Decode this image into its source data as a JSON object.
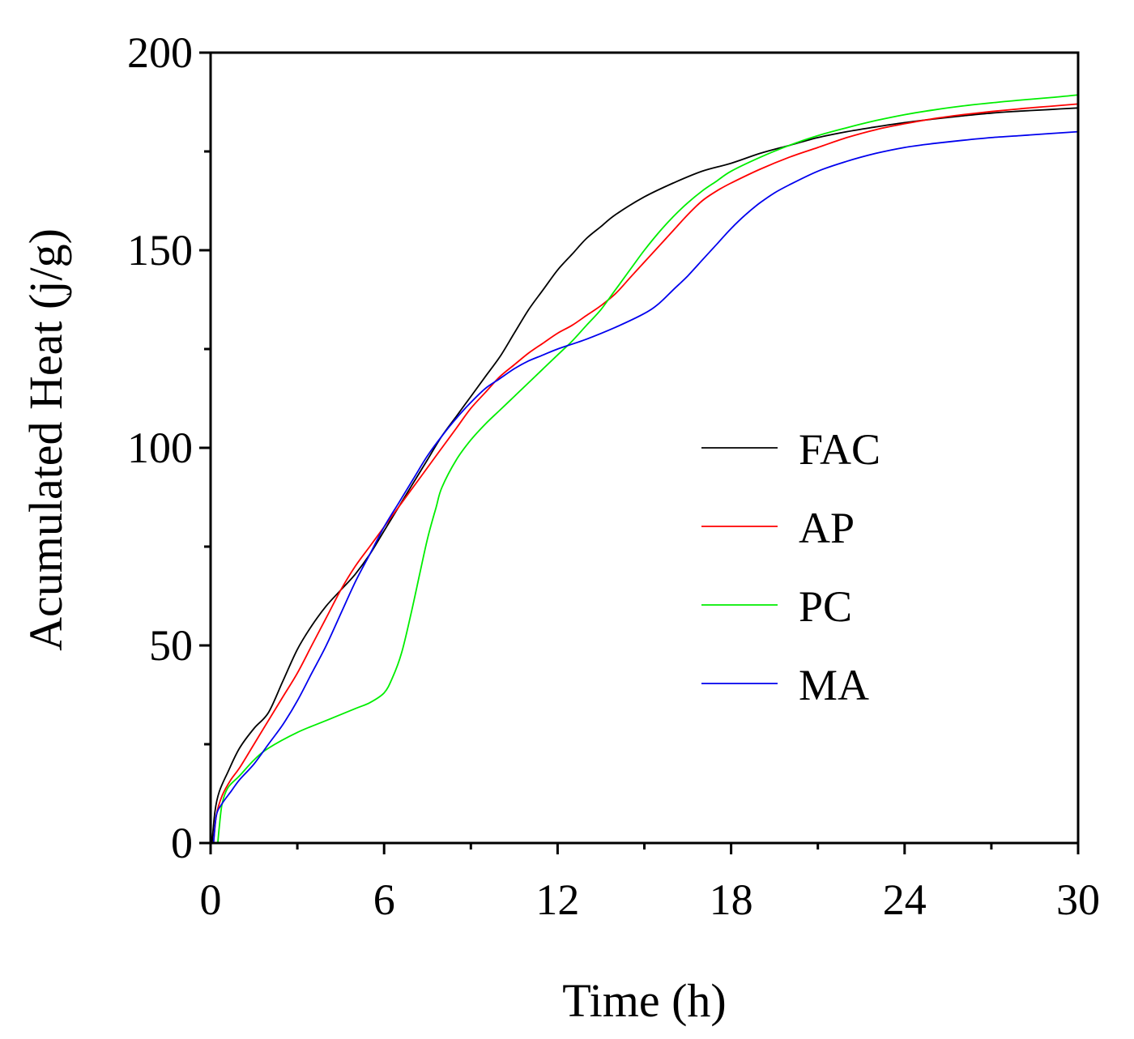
{
  "chart_data": {
    "type": "line",
    "title": "",
    "xlabel": "Time (h)",
    "ylabel": "Acumulated Heat (j/g)",
    "xlim": [
      0,
      30
    ],
    "ylim": [
      0,
      200
    ],
    "xticks": [
      0,
      6,
      12,
      18,
      24,
      30
    ],
    "xtick_labels": [
      "0",
      "6",
      "12",
      "18",
      "24",
      "30"
    ],
    "yticks": [
      0,
      50,
      100,
      150,
      200
    ],
    "ytick_labels": [
      "0",
      "50",
      "100",
      "150",
      "200"
    ],
    "x_minor_ticks": [
      3,
      9,
      15,
      21,
      27
    ],
    "y_minor_ticks": [
      25,
      75,
      125,
      175
    ],
    "legend_position": "center-right",
    "grid": false,
    "series": [
      {
        "name": "FAC",
        "color": "#000000",
        "points": [
          [
            0.05,
            0
          ],
          [
            0.15,
            8
          ],
          [
            0.3,
            13
          ],
          [
            0.6,
            18
          ],
          [
            1,
            24
          ],
          [
            1.5,
            29
          ],
          [
            2,
            33
          ],
          [
            2.5,
            41
          ],
          [
            3,
            49
          ],
          [
            3.5,
            55
          ],
          [
            4,
            60
          ],
          [
            4.5,
            64
          ],
          [
            5,
            68
          ],
          [
            5.5,
            73
          ],
          [
            6,
            79
          ],
          [
            6.5,
            85
          ],
          [
            7,
            91
          ],
          [
            7.5,
            97
          ],
          [
            8,
            103
          ],
          [
            8.5,
            108
          ],
          [
            9,
            113
          ],
          [
            9.5,
            118
          ],
          [
            10,
            123
          ],
          [
            10.5,
            129
          ],
          [
            11,
            135
          ],
          [
            11.5,
            140
          ],
          [
            12,
            145
          ],
          [
            12.5,
            149
          ],
          [
            13,
            153
          ],
          [
            13.5,
            156
          ],
          [
            14,
            159
          ],
          [
            15,
            163.5
          ],
          [
            16,
            167
          ],
          [
            17,
            170
          ],
          [
            18,
            172
          ],
          [
            19,
            174.5
          ],
          [
            20,
            176.5
          ],
          [
            21,
            178.5
          ],
          [
            22,
            180
          ],
          [
            23,
            181.2
          ],
          [
            24,
            182.3
          ],
          [
            25,
            183.2
          ],
          [
            26,
            184
          ],
          [
            27,
            184.7
          ],
          [
            28,
            185.2
          ],
          [
            29,
            185.6
          ],
          [
            30,
            186
          ]
        ]
      },
      {
        "name": "AP",
        "color": "#ff0000",
        "points": [
          [
            0.1,
            0
          ],
          [
            0.2,
            7
          ],
          [
            0.4,
            12
          ],
          [
            0.7,
            16
          ],
          [
            1,
            19
          ],
          [
            1.5,
            25
          ],
          [
            2,
            31
          ],
          [
            2.5,
            37
          ],
          [
            3,
            43
          ],
          [
            3.5,
            50
          ],
          [
            4,
            57
          ],
          [
            4.5,
            64
          ],
          [
            5,
            70
          ],
          [
            5.5,
            75
          ],
          [
            6,
            80
          ],
          [
            6.5,
            85
          ],
          [
            7,
            90
          ],
          [
            7.5,
            95
          ],
          [
            8,
            100
          ],
          [
            8.5,
            105
          ],
          [
            9,
            110
          ],
          [
            9.5,
            114
          ],
          [
            10,
            118
          ],
          [
            10.5,
            121
          ],
          [
            11,
            124
          ],
          [
            11.5,
            126.5
          ],
          [
            12,
            129
          ],
          [
            12.5,
            131
          ],
          [
            13,
            133.5
          ],
          [
            13.5,
            136
          ],
          [
            14,
            139
          ],
          [
            14.5,
            143
          ],
          [
            15,
            147
          ],
          [
            15.5,
            151
          ],
          [
            16,
            155
          ],
          [
            16.5,
            159
          ],
          [
            17,
            162.5
          ],
          [
            17.5,
            165
          ],
          [
            18,
            167
          ],
          [
            19,
            170.5
          ],
          [
            20,
            173.5
          ],
          [
            21,
            176
          ],
          [
            22,
            178.5
          ],
          [
            23,
            180.5
          ],
          [
            24,
            182
          ],
          [
            25,
            183.3
          ],
          [
            26,
            184.3
          ],
          [
            27,
            185.1
          ],
          [
            28,
            185.8
          ],
          [
            29,
            186.4
          ],
          [
            30,
            187
          ]
        ]
      },
      {
        "name": "PC",
        "color": "#00ee00",
        "points": [
          [
            0.25,
            0
          ],
          [
            0.3,
            4
          ],
          [
            0.4,
            10
          ],
          [
            0.6,
            14
          ],
          [
            1,
            17
          ],
          [
            1.5,
            21
          ],
          [
            2,
            24
          ],
          [
            3,
            28
          ],
          [
            4,
            31
          ],
          [
            5,
            34
          ],
          [
            5.5,
            35.5
          ],
          [
            6,
            38
          ],
          [
            6.3,
            42
          ],
          [
            6.6,
            48
          ],
          [
            6.9,
            57
          ],
          [
            7.2,
            67
          ],
          [
            7.5,
            77
          ],
          [
            7.8,
            85
          ],
          [
            8,
            90
          ],
          [
            8.5,
            97
          ],
          [
            9,
            102
          ],
          [
            9.5,
            106
          ],
          [
            10,
            109.5
          ],
          [
            10.5,
            113
          ],
          [
            11,
            116.5
          ],
          [
            11.5,
            120
          ],
          [
            12,
            123.5
          ],
          [
            12.5,
            127
          ],
          [
            13,
            131
          ],
          [
            13.5,
            135
          ],
          [
            14,
            140
          ],
          [
            14.5,
            145
          ],
          [
            15,
            150
          ],
          [
            15.5,
            154.5
          ],
          [
            16,
            158.5
          ],
          [
            16.5,
            162
          ],
          [
            17,
            165
          ],
          [
            17.5,
            167.5
          ],
          [
            18,
            170
          ],
          [
            19,
            173.5
          ],
          [
            20,
            176.5
          ],
          [
            21,
            179
          ],
          [
            22,
            181
          ],
          [
            23,
            182.8
          ],
          [
            24,
            184.3
          ],
          [
            25,
            185.5
          ],
          [
            26,
            186.5
          ],
          [
            27,
            187.3
          ],
          [
            28,
            188
          ],
          [
            29,
            188.6
          ],
          [
            30,
            189.3
          ]
        ]
      },
      {
        "name": "MA",
        "color": "#0000ee",
        "points": [
          [
            0.1,
            0
          ],
          [
            0.2,
            7
          ],
          [
            0.4,
            10
          ],
          [
            0.7,
            13
          ],
          [
            1,
            16
          ],
          [
            1.5,
            20
          ],
          [
            2,
            25
          ],
          [
            2.5,
            30
          ],
          [
            3,
            36
          ],
          [
            3.5,
            43
          ],
          [
            4,
            50
          ],
          [
            4.5,
            58
          ],
          [
            5,
            66
          ],
          [
            5.5,
            73
          ],
          [
            6,
            80
          ],
          [
            6.5,
            86
          ],
          [
            7,
            92
          ],
          [
            7.5,
            98
          ],
          [
            8,
            103
          ],
          [
            8.5,
            107.5
          ],
          [
            9,
            111.5
          ],
          [
            9.5,
            115
          ],
          [
            10,
            117.5
          ],
          [
            10.5,
            120
          ],
          [
            11,
            122
          ],
          [
            11.5,
            123.5
          ],
          [
            12,
            125
          ],
          [
            13,
            127.5
          ],
          [
            14,
            130.5
          ],
          [
            15,
            134
          ],
          [
            15.5,
            136.5
          ],
          [
            16,
            140
          ],
          [
            16.5,
            143.5
          ],
          [
            17,
            147.5
          ],
          [
            17.5,
            151.5
          ],
          [
            18,
            155.5
          ],
          [
            18.5,
            159
          ],
          [
            19,
            162
          ],
          [
            19.5,
            164.5
          ],
          [
            20,
            166.5
          ],
          [
            21,
            170
          ],
          [
            22,
            172.5
          ],
          [
            23,
            174.5
          ],
          [
            24,
            176
          ],
          [
            25,
            177
          ],
          [
            26,
            177.8
          ],
          [
            27,
            178.5
          ],
          [
            28,
            179
          ],
          [
            29,
            179.5
          ],
          [
            30,
            180
          ]
        ]
      }
    ]
  }
}
